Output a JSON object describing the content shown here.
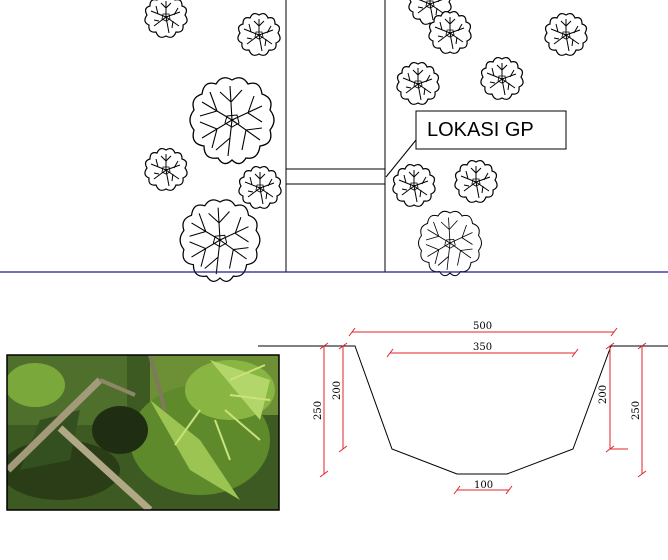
{
  "callout": {
    "label": "LOKASI GP"
  },
  "cross_section": {
    "dimensions": {
      "top_width": "500",
      "mid_width": "350",
      "bottom_width": "100",
      "left_outer_height": "250",
      "left_inner_height": "200",
      "right_inner_height": "200",
      "right_outer_height": "250"
    }
  },
  "photo": {
    "subject": "site-photo-vegetation-with-bamboo-poles"
  },
  "colors": {
    "line": "#000000",
    "dimension": "#e0242a",
    "section_divider": "#1c1c9c",
    "vegetation_dark": "#2f4a1e",
    "vegetation_light": "#7dab3b"
  }
}
